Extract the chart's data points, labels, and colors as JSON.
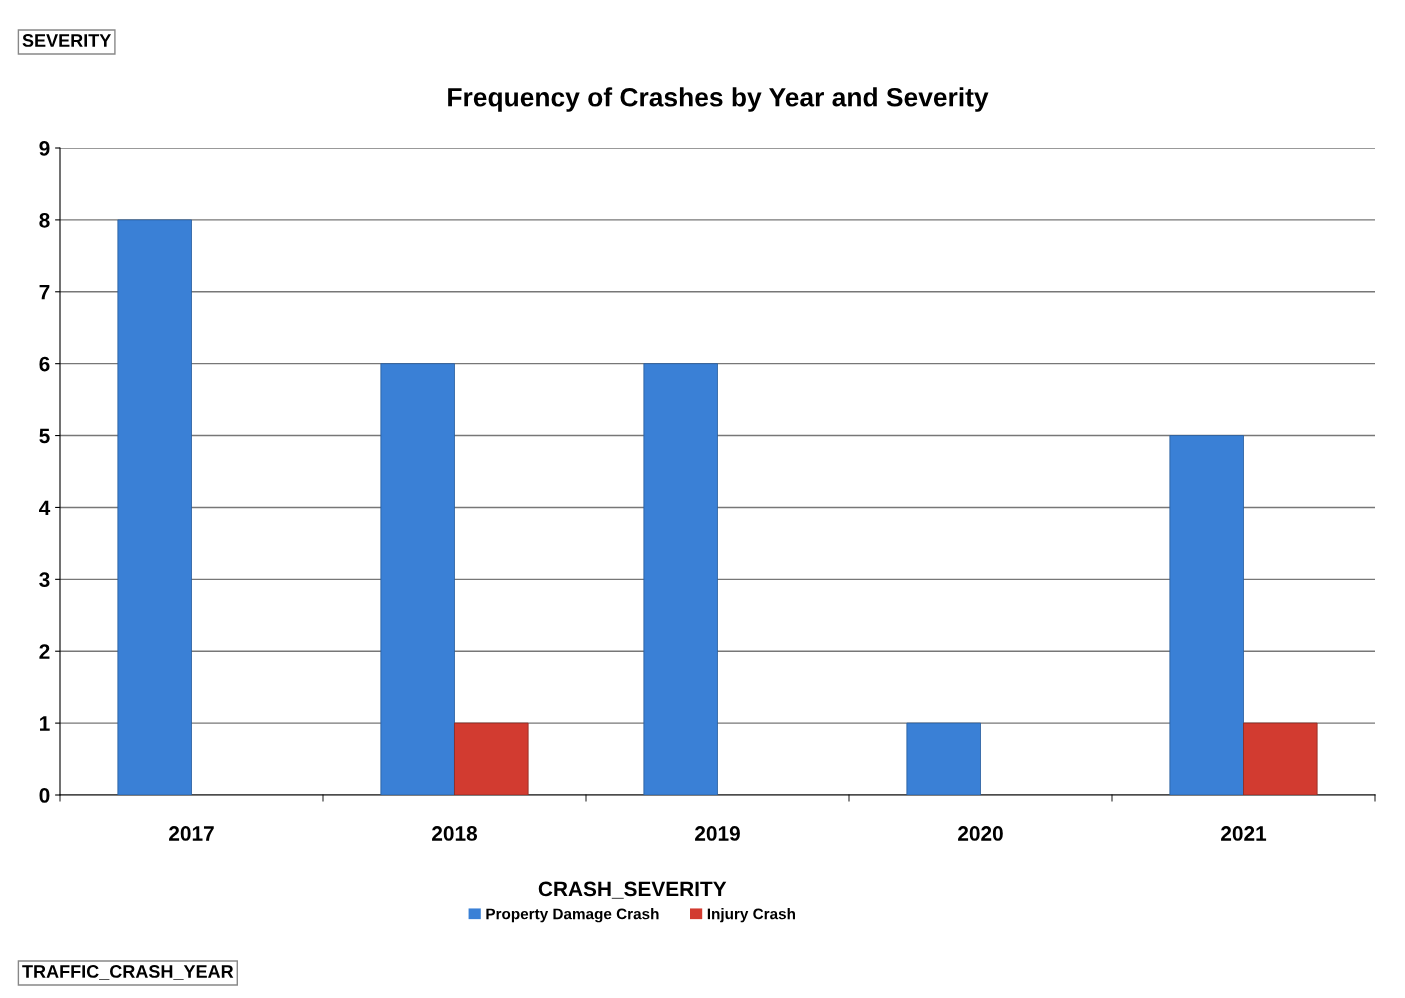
{
  "chart_data": {
    "type": "bar",
    "title": "Frequency of Crashes by Year and Severity",
    "categories": [
      "2017",
      "2018",
      "2019",
      "2020",
      "2021"
    ],
    "series": [
      {
        "name": "Property Damage Crash",
        "color": "#3a80d6",
        "values": [
          8,
          6,
          6,
          1,
          5
        ]
      },
      {
        "name": "Injury Crash",
        "color": "#d23b30",
        "values": [
          null,
          1,
          null,
          null,
          1
        ]
      }
    ],
    "ylim": [
      0,
      9
    ],
    "yticks": [
      0,
      1,
      2,
      3,
      4,
      5,
      6,
      7,
      8,
      9
    ],
    "grid": "y",
    "legend": "bottom",
    "legend_title": "CRASH_SEVERITY",
    "annotations": [
      "SEVERITY",
      "TRAFFIC_CRASH_YEAR"
    ]
  }
}
